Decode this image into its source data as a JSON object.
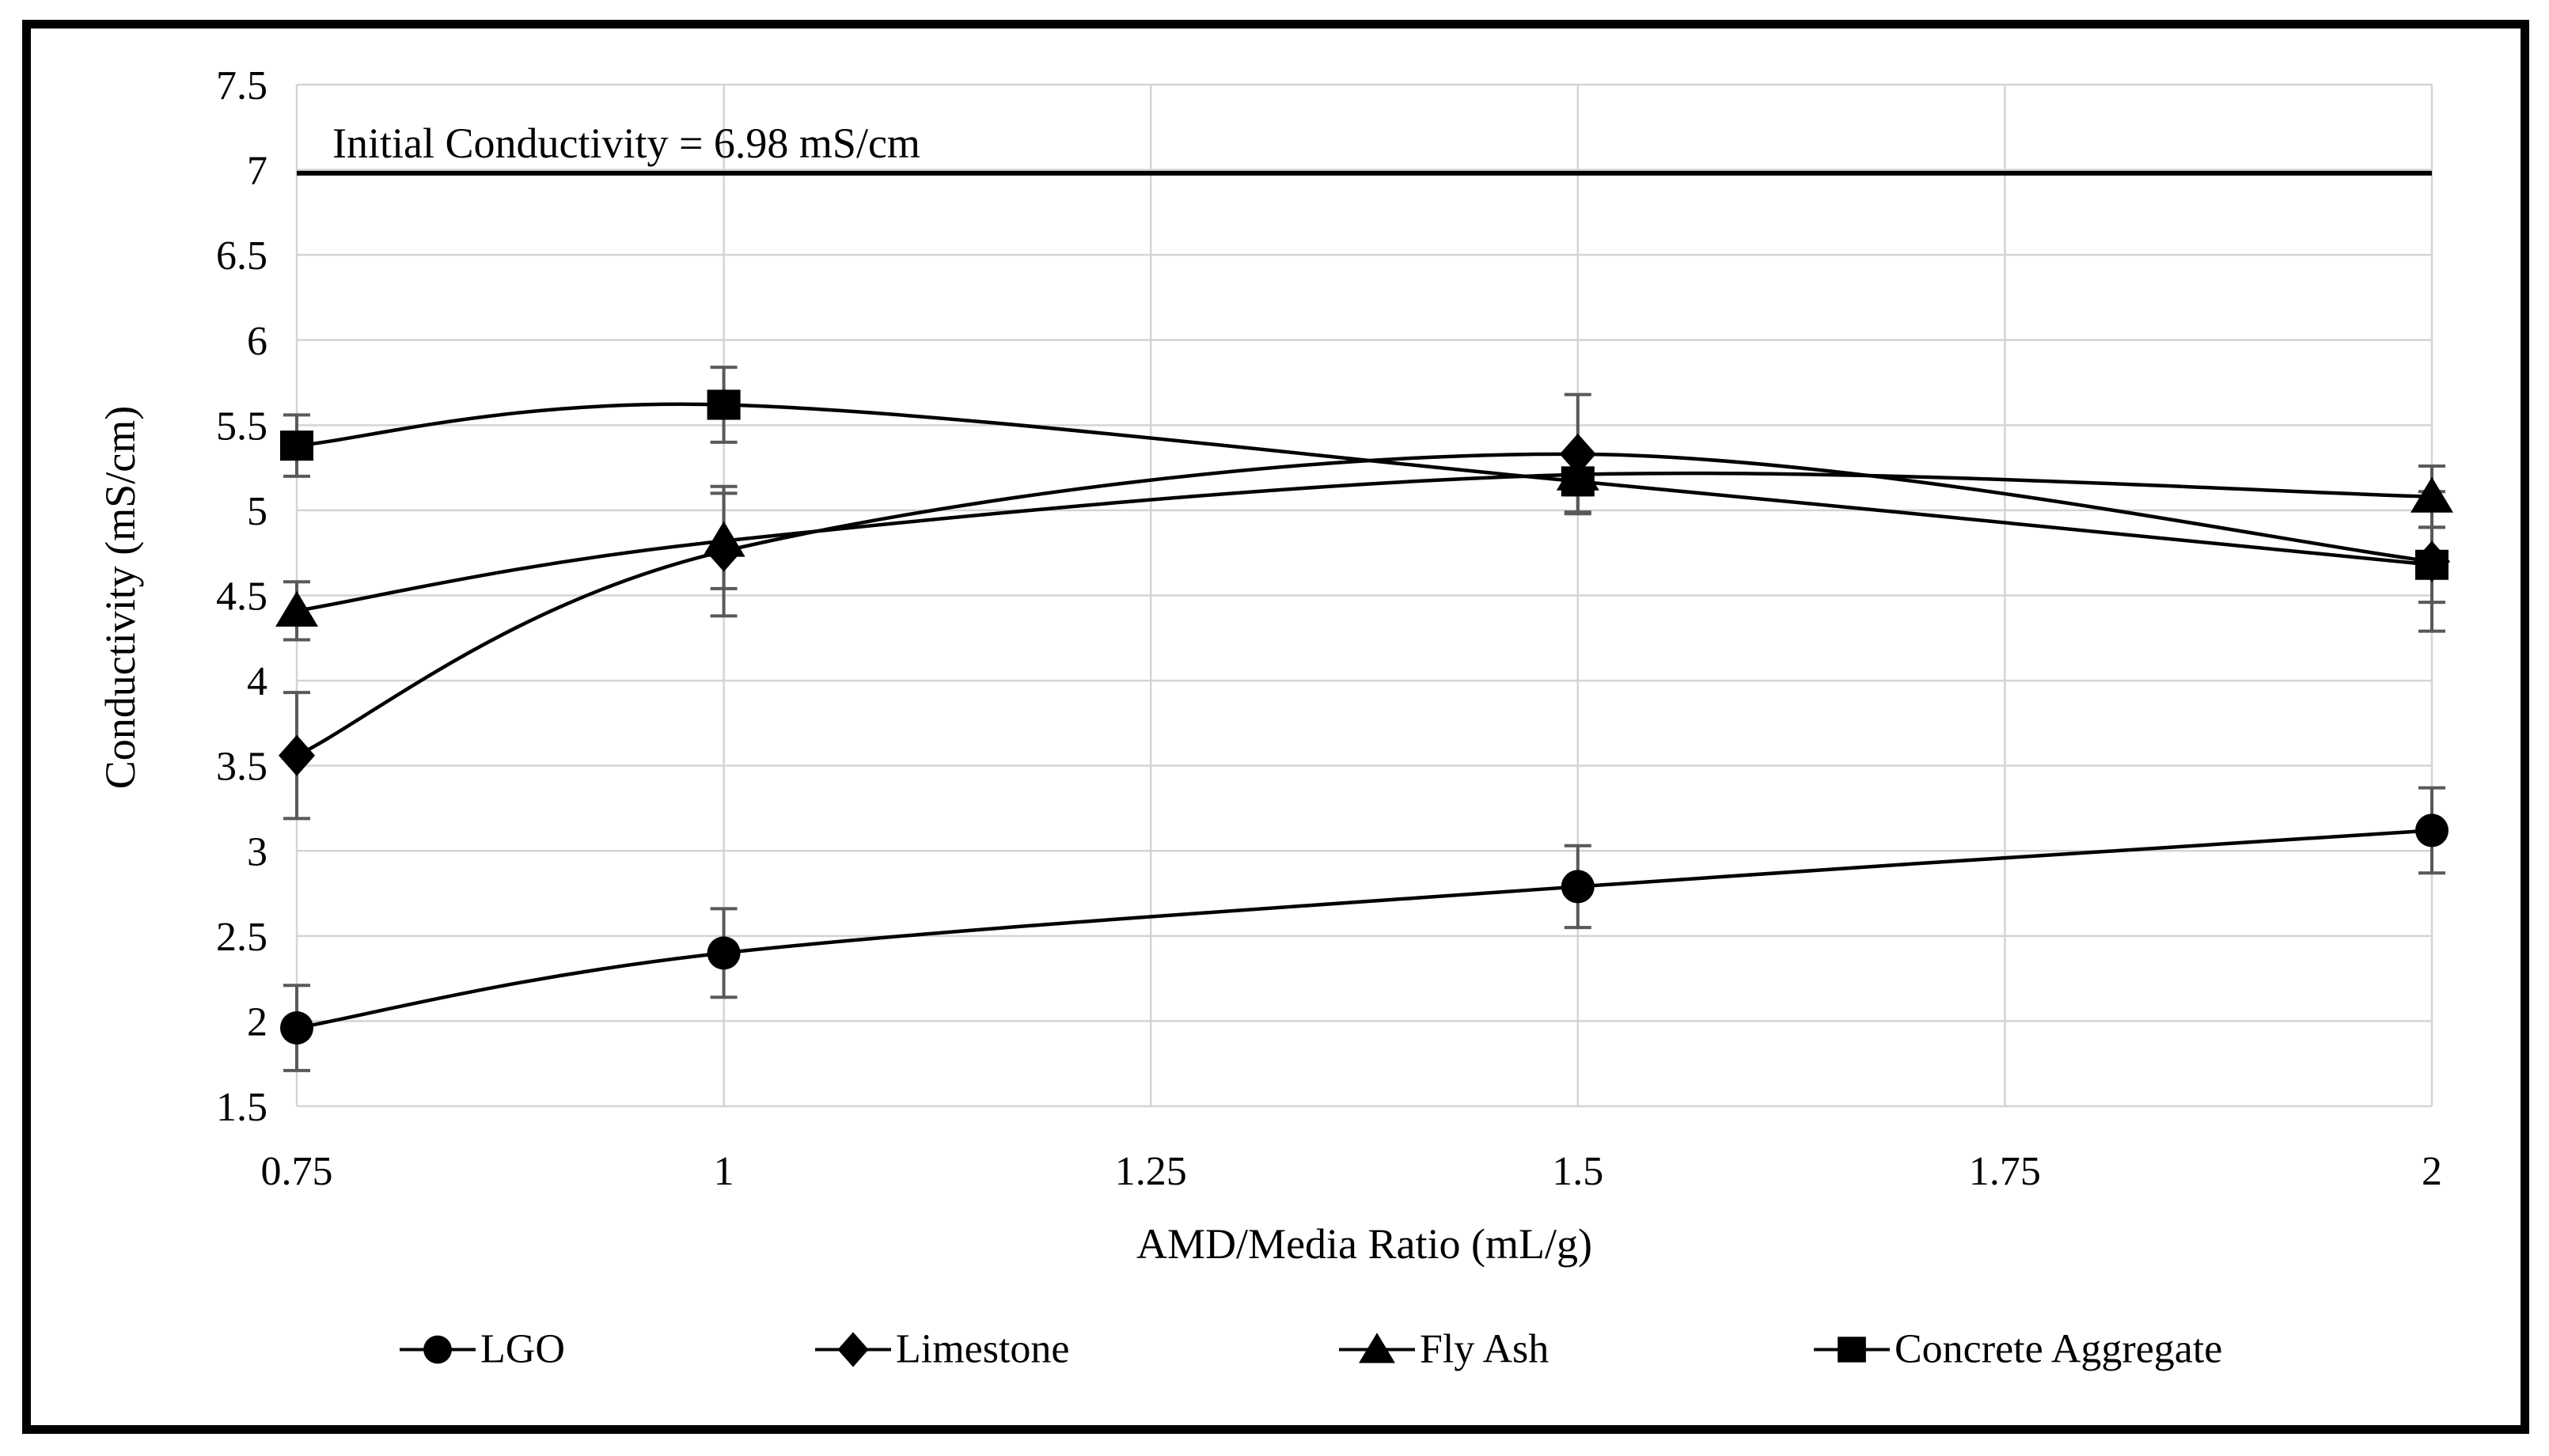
{
  "figure": {
    "kind": "scientific line chart with error bars"
  },
  "chart_data": {
    "type": "line",
    "title": "",
    "xlabel": "AMD/Media Ratio (mL/g)",
    "ylabel": "Conductivity (mS/cm)",
    "xlim": [
      0.75,
      2
    ],
    "ylim": [
      1.5,
      7.5
    ],
    "x_tick_labels": [
      "0.75",
      "1",
      "1.25",
      "1.5",
      "1.75",
      "2"
    ],
    "x_tick_values": [
      0.75,
      1,
      1.25,
      1.5,
      1.75,
      2
    ],
    "y_tick_labels": [
      "1.5",
      "2",
      "2.5",
      "3",
      "3.5",
      "4",
      "4.5",
      "5",
      "5.5",
      "6",
      "6.5",
      "7",
      "7.5"
    ],
    "y_tick_values": [
      1.5,
      2,
      2.5,
      3,
      3.5,
      4,
      4.5,
      5,
      5.5,
      6,
      6.5,
      7,
      7.5
    ],
    "grid": true,
    "legend_position": "bottom",
    "annotation": {
      "text": "Initial Conductivity = 6.98 mS/cm"
    },
    "reference_line": {
      "value": 6.98
    },
    "x": [
      0.75,
      1,
      1.5,
      2
    ],
    "series": [
      {
        "name": "LGO",
        "marker": "circle",
        "values": [
          1.96,
          2.4,
          2.79,
          3.12
        ],
        "errors": [
          0.25,
          0.26,
          0.24,
          0.25
        ]
      },
      {
        "name": "Limestone",
        "marker": "diamond",
        "values": [
          3.56,
          4.76,
          5.33,
          4.7
        ],
        "errors": [
          0.37,
          0.38,
          0.35,
          0.41
        ]
      },
      {
        "name": "Fly Ash",
        "marker": "triangle",
        "values": [
          4.41,
          4.82,
          5.21,
          5.08
        ],
        "errors": [
          0.17,
          0.28,
          0.12,
          0.18
        ]
      },
      {
        "name": "Concrete Aggregate",
        "marker": "square",
        "values": [
          5.38,
          5.62,
          5.17,
          4.68
        ],
        "errors": [
          0.18,
          0.22,
          0.18,
          0.22
        ]
      }
    ]
  },
  "colors": {
    "line": "#000000",
    "marker": "#000000",
    "grid": "#d4d4d4",
    "axis": "#c0c0c0",
    "error_bar": "#595959",
    "reference_line": "#000000",
    "border": "#000000",
    "background": "#ffffff",
    "text": "#000000"
  }
}
